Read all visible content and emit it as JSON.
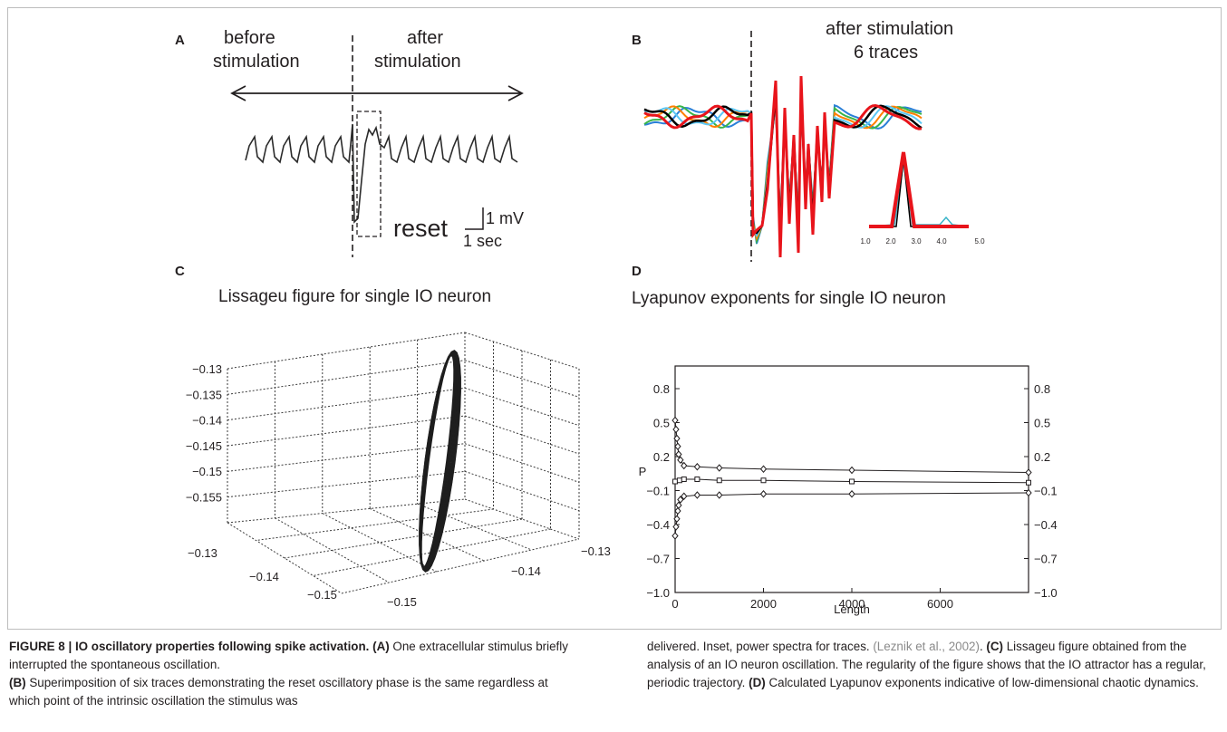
{
  "panels": {
    "A": {
      "label": "A",
      "before": "before",
      "before2": "stimulation",
      "after": "after",
      "after2": "stimulation",
      "reset": "reset",
      "scale_v": "1 mV",
      "scale_t": "1 sec"
    },
    "B": {
      "label": "B",
      "title1": "after stimulation",
      "title2": "6 traces",
      "trace_colors": [
        "#2a7fd8",
        "#39b54a",
        "#ff7f00",
        "#5bc8f5",
        "#000000",
        "#e8141b"
      ],
      "inset_ticks": [
        "1.0",
        "2.0",
        "3.0",
        "4.0",
        "5.0"
      ]
    },
    "C": {
      "label": "C",
      "title": "Lissageu figure for single IO neuron",
      "z_ticks": [
        "−0.13",
        "−0.135",
        "−0.14",
        "−0.145",
        "−0.15",
        "−0.155"
      ],
      "x_ticks": [
        "−0.13",
        "−0.14",
        "−0.15"
      ],
      "y_ticks": [
        "−0.13",
        "−0.14",
        "−0.15"
      ]
    },
    "D": {
      "label": "D",
      "title": "Lyapunov exponents for single IO neuron",
      "ylabel": "P",
      "xlabel": "Length",
      "y_ticks": [
        "0.8",
        "0.5",
        "0.2",
        "−0.1",
        "−0.4",
        "−0.7",
        "−1.0"
      ],
      "x_ticks": [
        "0",
        "2000",
        "4000",
        "6000"
      ]
    }
  },
  "chart_data": [
    {
      "type": "line",
      "panel": "D",
      "title": "Lyapunov exponents for single IO neuron",
      "xlabel": "Length",
      "ylabel": "P",
      "xlim": [
        0,
        8000
      ],
      "ylim": [
        -1.0,
        1.0
      ],
      "y_ticks": [
        0.8,
        0.5,
        0.2,
        -0.1,
        -0.4,
        -0.7,
        -1.0
      ],
      "x_ticks": [
        0,
        2000,
        4000,
        6000
      ],
      "series": [
        {
          "marker": "diamond",
          "x": [
            0,
            20,
            40,
            60,
            80,
            120,
            200,
            500,
            1000,
            2000,
            4000,
            8000
          ],
          "y": [
            0.52,
            0.44,
            0.36,
            0.29,
            0.22,
            0.17,
            0.12,
            0.11,
            0.1,
            0.09,
            0.08,
            0.06
          ]
        },
        {
          "marker": "square",
          "x": [
            0,
            100,
            200,
            500,
            1000,
            2000,
            4000,
            8000
          ],
          "y": [
            -0.02,
            -0.01,
            0.0,
            0.0,
            -0.01,
            -0.01,
            -0.02,
            -0.03
          ]
        },
        {
          "marker": "diamond",
          "x": [
            0,
            20,
            40,
            60,
            80,
            120,
            200,
            500,
            1000,
            2000,
            4000,
            8000
          ],
          "y": [
            -0.5,
            -0.42,
            -0.35,
            -0.28,
            -0.23,
            -0.18,
            -0.15,
            -0.14,
            -0.14,
            -0.13,
            -0.13,
            -0.12
          ]
        }
      ]
    }
  ],
  "caption": {
    "fig": "FIGURE 8 | IO oscillatory properties following spike activation.",
    "a_tag": "(A)",
    "a_text": " One extracellular stimulus briefly interrupted the spontaneous oscillation.",
    "b_tag": "(B)",
    "b_text": " Superimposition of six traces demonstrating the reset oscillatory phase is the same regardless at which point of the intrinsic oscillation the stimulus was delivered. Inset, power spectra for traces. ",
    "cite": "(Leznik et al., 2002)",
    "after_cite": ". ",
    "c_tag": "(C)",
    "c_text": " Lissageu figure obtained from the analysis of an IO neuron oscillation. The regularity of the figure shows that the IO attractor has a regular, periodic trajectory. ",
    "d_tag": "(D)",
    "d_text": " Calculated Lyapunov exponents indicative of low-dimensional chaotic dynamics."
  }
}
